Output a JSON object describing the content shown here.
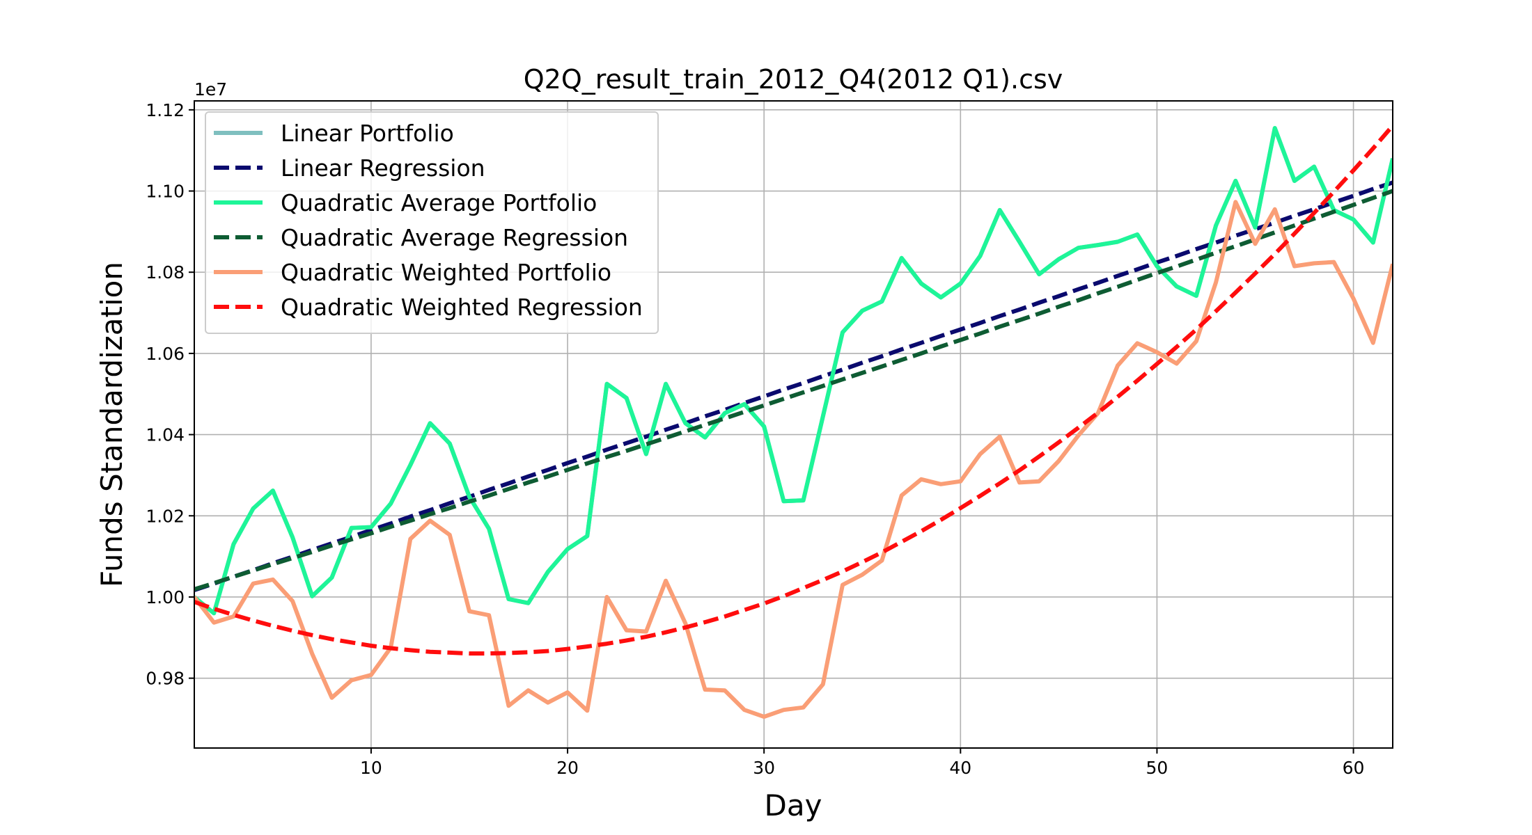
{
  "chart_data": {
    "type": "line",
    "title": "Q2Q_result_train_2012_Q4(2012 Q1).csv",
    "xlabel": "Day",
    "ylabel": "Funds Standardization",
    "y_offset_label": "1e7",
    "xlim": [
      1,
      62
    ],
    "ylim": [
      0.9628,
      1.1222
    ],
    "x_ticks": [
      10,
      20,
      30,
      40,
      50,
      60
    ],
    "y_ticks": [
      0.98,
      1.0,
      1.02,
      1.04,
      1.06,
      1.08,
      1.1,
      1.12
    ],
    "y_tick_labels": [
      "0.98",
      "1.00",
      "1.02",
      "1.04",
      "1.06",
      "1.08",
      "1.10",
      "1.12"
    ],
    "grid": true,
    "legend_position": "top-left",
    "x": [
      1,
      2,
      3,
      4,
      5,
      6,
      7,
      8,
      9,
      10,
      11,
      12,
      13,
      14,
      15,
      16,
      17,
      18,
      19,
      20,
      21,
      22,
      23,
      24,
      25,
      26,
      27,
      28,
      29,
      30,
      31,
      32,
      33,
      34,
      35,
      36,
      37,
      38,
      39,
      40,
      41,
      42,
      43,
      44,
      45,
      46,
      47,
      48,
      49,
      50,
      51,
      52,
      53,
      54,
      55,
      56,
      57,
      58,
      59,
      60,
      61,
      62
    ],
    "series": [
      {
        "name": "Linear Portfolio",
        "color": "#7fbfbf",
        "style": "solid",
        "values": [
          1.0,
          0.996,
          1.013,
          1.0218,
          1.0262,
          1.0147,
          1.0002,
          1.0048,
          1.017,
          1.0172,
          1.023,
          1.0325,
          1.0428,
          1.0378,
          1.0247,
          1.0168,
          0.9995,
          0.9985,
          1.0062,
          1.0118,
          1.015,
          1.0525,
          1.049,
          1.0352,
          1.0525,
          1.0428,
          1.0393,
          1.0453,
          1.0475,
          1.042,
          1.0236,
          1.0238,
          1.0445,
          1.0652,
          1.0705,
          1.0728,
          1.0835,
          1.0772,
          1.0738,
          1.0772,
          1.084,
          1.0953,
          1.0875,
          1.0795,
          1.0832,
          1.086,
          1.0867,
          1.0875,
          1.0893,
          1.0815,
          1.0765,
          1.0742,
          1.0915,
          1.1025,
          1.091,
          1.1155,
          1.1025,
          1.106,
          1.0953,
          1.093,
          1.0873,
          1.108
        ]
      },
      {
        "name": "Linear Regression",
        "color": "#0a0a6e",
        "style": "dashed",
        "values": [
          1.0017,
          1.0033,
          1.005,
          1.0066,
          1.0083,
          1.0099,
          1.0116,
          1.0132,
          1.0148,
          1.0165,
          1.0181,
          1.0198,
          1.0214,
          1.0231,
          1.0247,
          1.0264,
          1.028,
          1.0297,
          1.0313,
          1.033,
          1.0346,
          1.0363,
          1.0379,
          1.0395,
          1.0412,
          1.0428,
          1.0445,
          1.0461,
          1.0478,
          1.0494,
          1.0511,
          1.0527,
          1.0544,
          1.056,
          1.0577,
          1.0593,
          1.061,
          1.0626,
          1.0643,
          1.0659,
          1.0675,
          1.0692,
          1.0708,
          1.0725,
          1.0741,
          1.0758,
          1.0774,
          1.0791,
          1.0807,
          1.0824,
          1.084,
          1.0857,
          1.0873,
          1.089,
          1.0906,
          1.0922,
          1.0939,
          1.0955,
          1.0972,
          1.0988,
          1.1005,
          1.1021
        ]
      },
      {
        "name": "Quadratic Average Portfolio",
        "color": "#1ef598",
        "style": "solid",
        "values": [
          1.0,
          0.996,
          1.013,
          1.0218,
          1.0262,
          1.0147,
          1.0002,
          1.0048,
          1.017,
          1.0172,
          1.023,
          1.0325,
          1.0428,
          1.0378,
          1.0247,
          1.0168,
          0.9995,
          0.9985,
          1.0062,
          1.0118,
          1.015,
          1.0525,
          1.049,
          1.0352,
          1.0525,
          1.0428,
          1.0393,
          1.0453,
          1.0475,
          1.042,
          1.0236,
          1.0238,
          1.0445,
          1.0652,
          1.0705,
          1.0728,
          1.0835,
          1.0772,
          1.0738,
          1.0772,
          1.084,
          1.0953,
          1.0875,
          1.0795,
          1.0832,
          1.086,
          1.0867,
          1.0875,
          1.0893,
          1.0815,
          1.0765,
          1.0742,
          1.0915,
          1.1025,
          1.091,
          1.1155,
          1.1025,
          1.106,
          1.0953,
          1.093,
          1.0873,
          1.108
        ]
      },
      {
        "name": "Quadratic Average Regression",
        "color": "#0e5c33",
        "style": "dashed",
        "values": [
          1.0019,
          1.0034,
          1.005,
          1.0065,
          1.0081,
          1.0096,
          1.0111,
          1.0127,
          1.0142,
          1.0157,
          1.0173,
          1.0188,
          1.0204,
          1.0219,
          1.0235,
          1.025,
          1.0266,
          1.0282,
          1.0297,
          1.0313,
          1.0329,
          1.0345,
          1.036,
          1.0376,
          1.0392,
          1.0408,
          1.0424,
          1.044,
          1.0456,
          1.0472,
          1.0488,
          1.0504,
          1.052,
          1.0536,
          1.0552,
          1.0568,
          1.0584,
          1.06,
          1.0617,
          1.0633,
          1.0649,
          1.0666,
          1.0682,
          1.0698,
          1.0715,
          1.0731,
          1.0748,
          1.0764,
          1.0781,
          1.0798,
          1.0814,
          1.0831,
          1.0848,
          1.0864,
          1.0881,
          1.0898,
          1.0915,
          1.0932,
          1.0949,
          1.0966,
          1.0983,
          1.1
        ]
      },
      {
        "name": "Quadratic Weighted Portfolio",
        "color": "#fa9e76",
        "style": "solid",
        "values": [
          1.0,
          0.9937,
          0.9952,
          1.0033,
          1.0043,
          0.999,
          0.986,
          0.9752,
          0.9795,
          0.9808,
          0.9875,
          1.0143,
          1.0188,
          1.0153,
          0.9965,
          0.9955,
          0.9732,
          0.977,
          0.974,
          0.9765,
          0.972,
          1.0,
          0.9918,
          0.9915,
          1.004,
          0.9935,
          0.9772,
          0.977,
          0.9722,
          0.9705,
          0.9722,
          0.9728,
          0.9785,
          1.003,
          1.0055,
          1.009,
          1.025,
          1.029,
          1.0278,
          1.0285,
          1.0352,
          1.0395,
          1.0282,
          1.0285,
          1.0335,
          1.0398,
          1.0453,
          1.057,
          1.0625,
          1.0603,
          1.0575,
          1.063,
          1.0775,
          1.0973,
          1.087,
          1.0955,
          1.0815,
          1.0822,
          1.0825,
          1.0735,
          1.0626,
          1.082
        ]
      },
      {
        "name": "Quadratic Weighted Regression",
        "color": "#ff0d0d",
        "style": "dashed",
        "values": [
          0.9988,
          0.9971,
          0.9956,
          0.9942,
          0.9929,
          0.9917,
          0.9906,
          0.9896,
          0.9888,
          0.988,
          0.9874,
          0.9869,
          0.9865,
          0.9863,
          0.9861,
          0.9861,
          0.9862,
          0.9864,
          0.9867,
          0.9872,
          0.9878,
          0.9885,
          0.9893,
          0.9902,
          0.9913,
          0.9925,
          0.9938,
          0.9952,
          0.9968,
          0.9984,
          1.0002,
          1.0022,
          1.0042,
          1.0063,
          1.0086,
          1.011,
          1.0136,
          1.0162,
          1.019,
          1.0219,
          1.0249,
          1.028,
          1.0312,
          1.0346,
          1.0381,
          1.0417,
          1.0454,
          1.0493,
          1.0533,
          1.0574,
          1.0616,
          1.0659,
          1.0704,
          1.075,
          1.0797,
          1.0845,
          1.0895,
          1.0946,
          1.0998,
          1.1051,
          1.1105,
          1.1161
        ]
      }
    ]
  }
}
